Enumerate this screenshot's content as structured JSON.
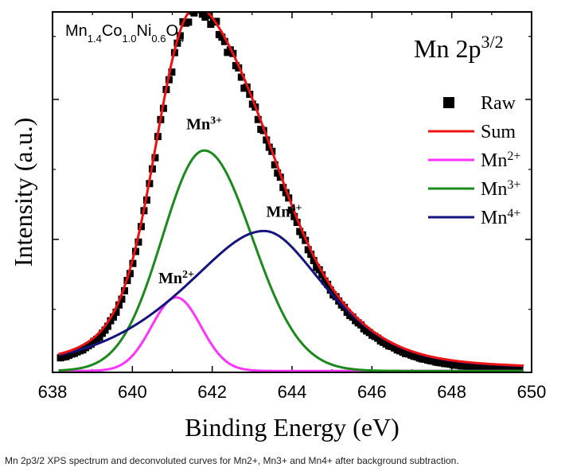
{
  "chart_data": {
    "type": "line",
    "sample_label": {
      "base": "Mn",
      "parts": [
        {
          "sub": "1.4",
          "el": "Co"
        },
        {
          "sub": "1.0",
          "el": "Ni"
        },
        {
          "sub": "0.6",
          "el": "O"
        },
        {
          "sub": "4",
          "el": ""
        }
      ]
    },
    "title_main": "Mn 2p",
    "title_sup": "3/2",
    "xlabel": "Binding Energy (eV)",
    "ylabel": "Intensity (a.u.)",
    "xlim": [
      638,
      650
    ],
    "ylim": [
      0,
      1.03
    ],
    "x_ticks": [
      638,
      640,
      642,
      644,
      646,
      648,
      650
    ],
    "x_tick_labels": [
      "638",
      "640",
      "642",
      "644",
      "646",
      "648",
      "650"
    ],
    "y_ticks_major": [
      0.38,
      0.78
    ],
    "y_ticks_minor": [
      0.18,
      0.58,
      0.96
    ],
    "raw_range": [
      638.2,
      649.7
    ],
    "legend": [
      {
        "key": "raw",
        "label": "Raw",
        "sup": ""
      },
      {
        "key": "sum",
        "label": "Sum",
        "sup": ""
      },
      {
        "key": "mn2",
        "label": "Mn",
        "sup": "2+"
      },
      {
        "key": "mn3",
        "label": "Mn",
        "sup": "3+"
      },
      {
        "key": "mn4",
        "label": "Mn",
        "sup": "4+"
      }
    ],
    "series": [
      {
        "key": "mn2",
        "name": "Mn2+",
        "color": "#ff33ff",
        "center": 641.1,
        "height": 0.21,
        "sigma_left": 0.62,
        "sigma_right": 0.62,
        "tail": 0
      },
      {
        "key": "mn3",
        "name": "Mn3+",
        "color": "#1a8a1a",
        "center": 641.8,
        "height": 0.63,
        "sigma_left": 1.05,
        "sigma_right": 1.2,
        "tail": 0
      },
      {
        "key": "mn4",
        "name": "Mn4+",
        "color": "#14147f",
        "center": 643.3,
        "height": 0.4,
        "sigma_left": 2.2,
        "sigma_right": 1.7,
        "tail": 0.55
      }
    ],
    "sum_color": "#ee1111",
    "raw_color": "#000000",
    "annotations": [
      {
        "label": "Mn",
        "sup": "2+",
        "x": 641.1,
        "y": 0.255
      },
      {
        "label": "Mn",
        "sup": "3+",
        "x": 641.8,
        "y": 0.695
      },
      {
        "label": "Mn",
        "sup": "4+",
        "x": 643.8,
        "y": 0.445
      }
    ]
  },
  "caption": "Mn 2p3/2 XPS spectrum and deconvoluted curves for Mn2+, Mn3+ and Mn4+ after background subtraction."
}
